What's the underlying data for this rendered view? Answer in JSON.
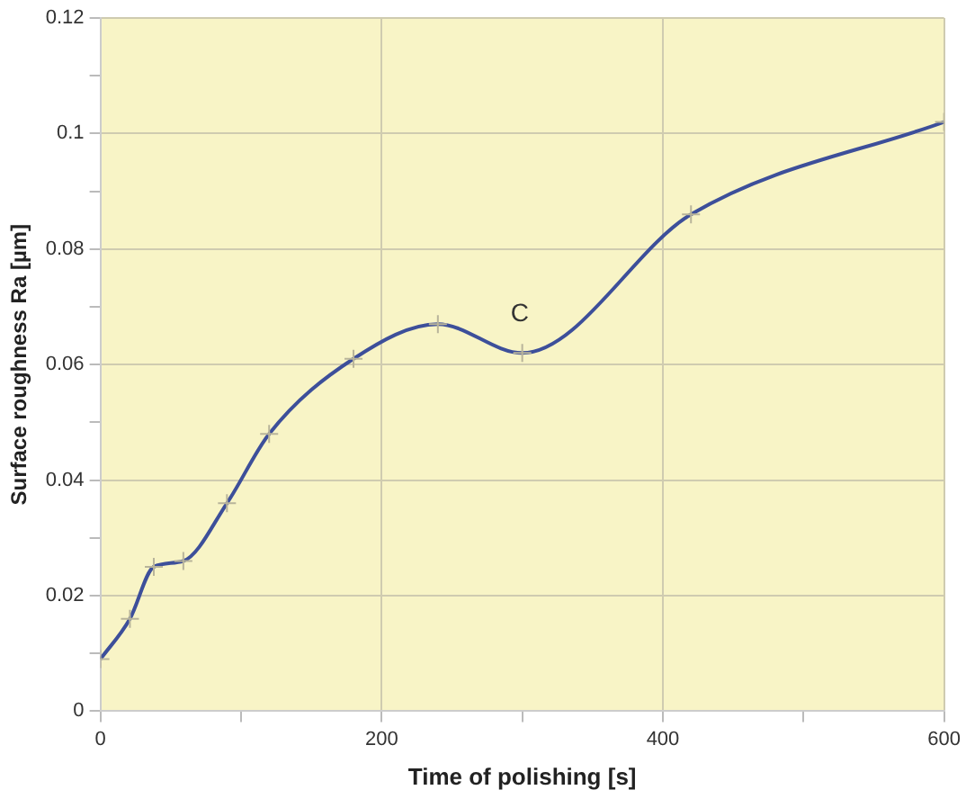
{
  "chart_data": {
    "type": "line",
    "xlabel": "Time of polishing [s]",
    "ylabel": "Surface roughness Ra [µm]",
    "x": [
      0,
      21,
      38,
      59,
      90,
      120,
      180,
      240,
      300,
      420,
      600
    ],
    "series": [
      {
        "color": "#3d4f9a",
        "values": [
          0.009,
          0.016,
          0.025,
          0.026,
          0.036,
          0.048,
          0.061,
          0.067,
          0.062,
          0.086,
          0.102
        ]
      }
    ],
    "xlim": [
      0,
      600
    ],
    "xticks": [
      0,
      {
        "value": 100,
        "label": null
      },
      200,
      {
        "value": 300,
        "label": null
      },
      400,
      {
        "value": 500,
        "label": null
      },
      600
    ],
    "ylim": [
      0,
      0.12
    ],
    "yticks": [
      0,
      {
        "value": 0.01,
        "label": null
      },
      0.02,
      {
        "value": 0.03,
        "label": null
      },
      0.04,
      {
        "value": 0.05,
        "label": null
      },
      0.06,
      {
        "value": 0.07,
        "label": null
      },
      0.08,
      {
        "value": 0.09,
        "label": null
      },
      0.1,
      {
        "value": 0.11,
        "label": null
      },
      0.12
    ],
    "annotations": [
      "C"
    ],
    "grid": true,
    "marker": "cross",
    "line_style": "solid",
    "legend": false
  }
}
